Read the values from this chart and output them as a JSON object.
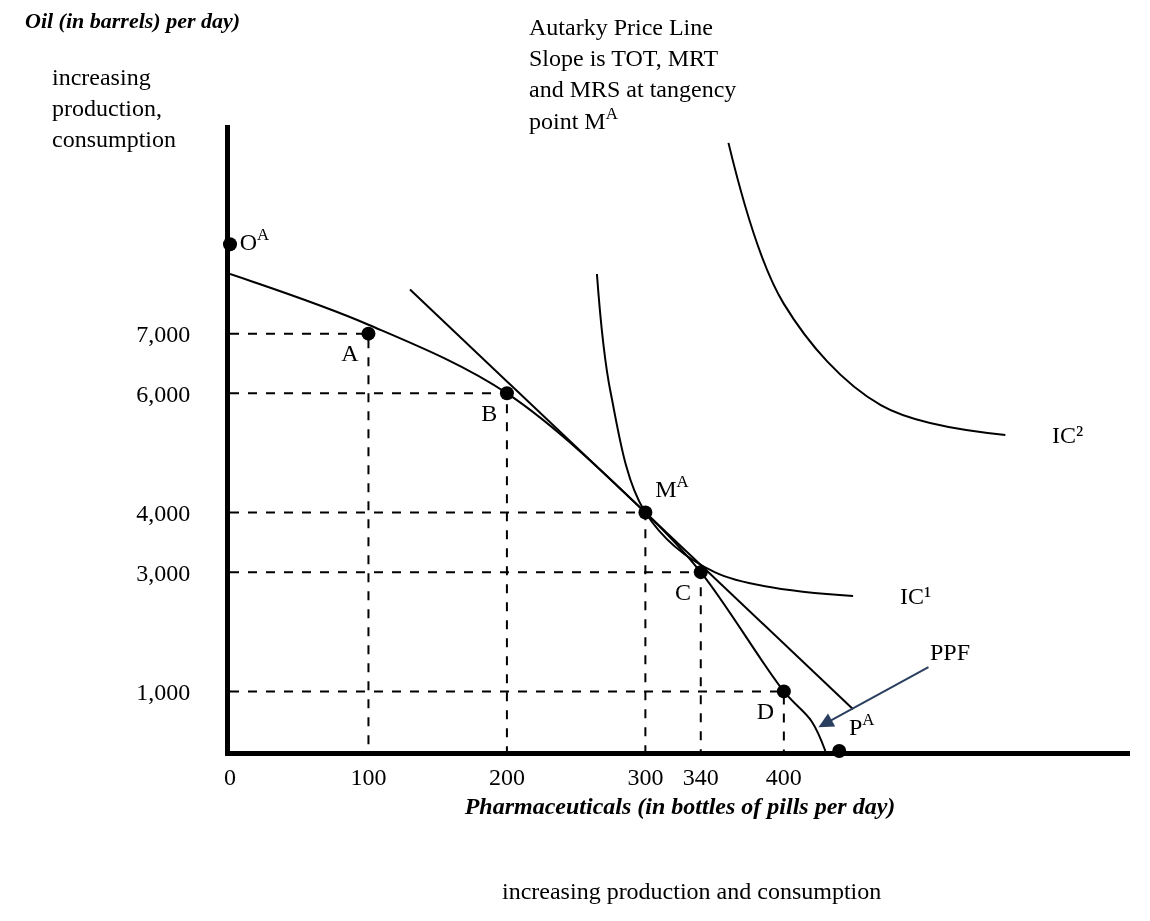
{
  "chart_data": {
    "type": "line",
    "title": null,
    "xlabel": "Pharmaceuticals (in bottles of pills per day)",
    "ylabel": "Oil (in barrels) per day)",
    "xlim": [
      0,
      650
    ],
    "ylim": [
      0,
      10500
    ],
    "xticks": [
      0,
      100,
      200,
      300,
      340,
      400
    ],
    "yticks": [
      {
        "value": 1000,
        "label": "1,000"
      },
      {
        "value": 3000,
        "label": "3,000"
      },
      {
        "value": 4000,
        "label": "4,000"
      },
      {
        "value": 6000,
        "label": "6,000"
      },
      {
        "value": 7000,
        "label": "7,000"
      }
    ],
    "series": [
      {
        "color": "#000000",
        "line_style": "dashed",
        "x": [
          0,
          100,
          100,
          null,
          0,
          200,
          200,
          null,
          0,
          300,
          300,
          null,
          0,
          340,
          340,
          null,
          0,
          400,
          400
        ],
        "values": [
          7000,
          7000,
          0,
          null,
          6000,
          6000,
          0,
          null,
          4000,
          4000,
          0,
          null,
          3000,
          3000,
          0,
          null,
          1000,
          1000,
          0
        ]
      },
      {
        "color": "#000000",
        "line_style": "solid",
        "x": [
          0,
          100,
          200,
          300,
          340,
          400,
          420,
          430
        ],
        "values": [
          8000,
          7150,
          6000,
          4000,
          3000,
          1000,
          500,
          0
        ]
      },
      {
        "color": "#000000",
        "line_style": "solid",
        "x": [
          130,
          450
        ],
        "values": [
          7740,
          700
        ]
      },
      {
        "name": "IC¹",
        "color": "#000000",
        "line_style": "solid",
        "x": [
          265,
          275,
          300,
          350,
          450
        ],
        "values": [
          8000,
          6000,
          4000,
          3000,
          2600
        ]
      },
      {
        "name": "IC²",
        "color": "#000000",
        "line_style": "solid",
        "x": [
          360,
          400,
          470,
          560
        ],
        "values": [
          10200,
          7500,
          5800,
          5300
        ]
      },
      {
        "type": "scatter",
        "marker": "circle",
        "color": "#000000",
        "x": [
          0,
          100,
          200,
          300,
          340,
          400,
          440
        ],
        "values": [
          8500,
          7000,
          6000,
          4000,
          3000,
          1000,
          0
        ],
        "value_labels": [
          "O$^{A}$",
          "A",
          "B",
          "M$^{A}$",
          "C",
          "D",
          "P$^{A}$"
        ]
      }
    ],
    "annotations": [
      "Autarky Price Line\nSlope is TOT, MRT\nand MRS at tangency\npoint M$^{A}$",
      {
        "text": "PPF",
        "x": 425,
        "y": 400
      },
      "increasing\nproduction,\nconsumption",
      "increasing production and consumption"
    ]
  }
}
